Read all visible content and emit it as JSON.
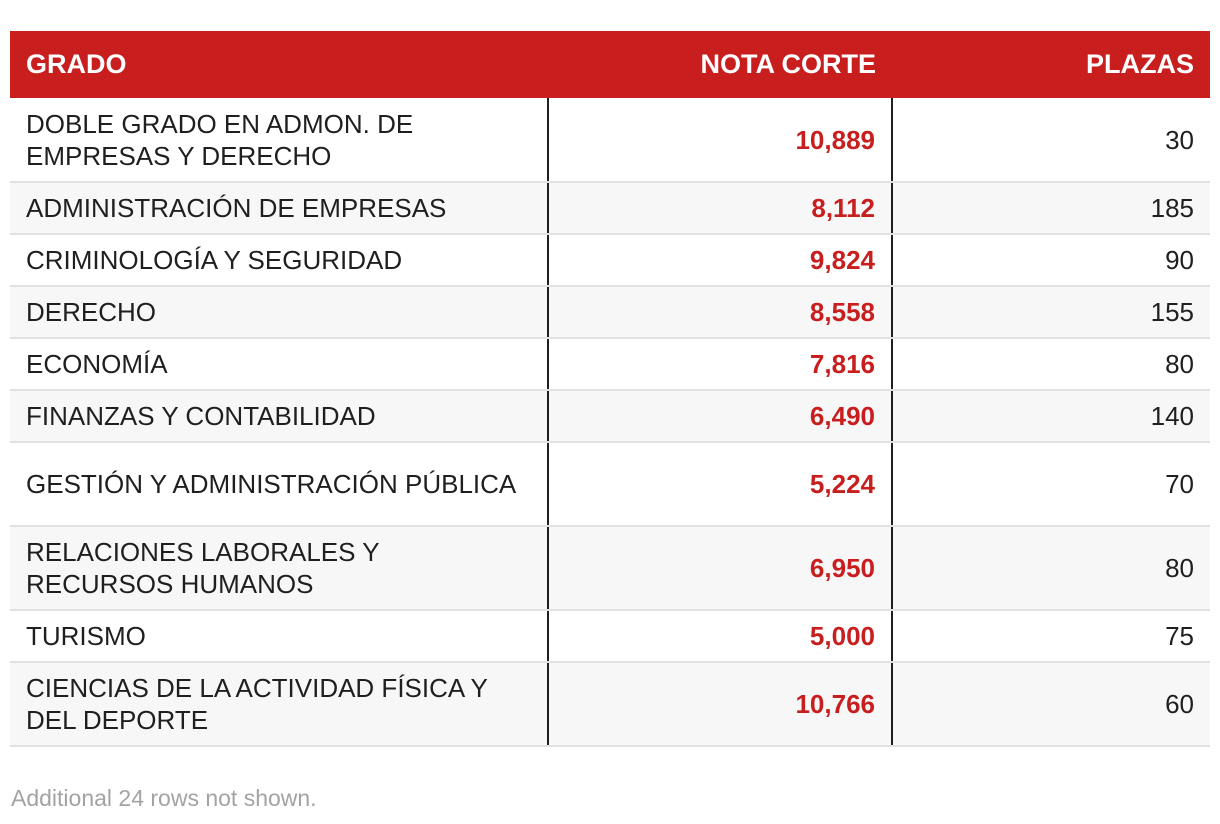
{
  "chart_data": {
    "type": "table",
    "columns": [
      "GRADO",
      "NOTA CORTE",
      "PLAZAS"
    ],
    "rows": [
      {
        "grado": "DOBLE GRADO EN ADMON. DE EMPRESAS Y DERECHO",
        "nota": "10,889",
        "plazas": "30"
      },
      {
        "grado": "ADMINISTRACIÓN DE EMPRESAS",
        "nota": "8,112",
        "plazas": "185"
      },
      {
        "grado": "CRIMINOLOGÍA Y SEGURIDAD",
        "nota": "9,824",
        "plazas": "90"
      },
      {
        "grado": "DERECHO",
        "nota": "8,558",
        "plazas": "155"
      },
      {
        "grado": "ECONOMÍA",
        "nota": "7,816",
        "plazas": "80"
      },
      {
        "grado": "FINANZAS Y CONTABILIDAD",
        "nota": "6,490",
        "plazas": "140"
      },
      {
        "grado": "GESTIÓN Y ADMINISTRACIÓN PÚBLICA",
        "nota": "5,224",
        "plazas": "70"
      },
      {
        "grado": "RELACIONES LABORALES Y RECURSOS HUMANOS",
        "nota": "6,950",
        "plazas": "80"
      },
      {
        "grado": "TURISMO",
        "nota": "5,000",
        "plazas": "75"
      },
      {
        "grado": "CIENCIAS DE LA ACTIVIDAD FÍSICA Y DEL DEPORTE",
        "nota": "10,766",
        "plazas": "60"
      }
    ],
    "footnote": "Additional 24 rows not shown.",
    "colors": {
      "header_bg": "#c81e1e",
      "header_text": "#ffffff",
      "nota_text": "#c81e1e",
      "stripe": "#f7f7f7"
    }
  }
}
